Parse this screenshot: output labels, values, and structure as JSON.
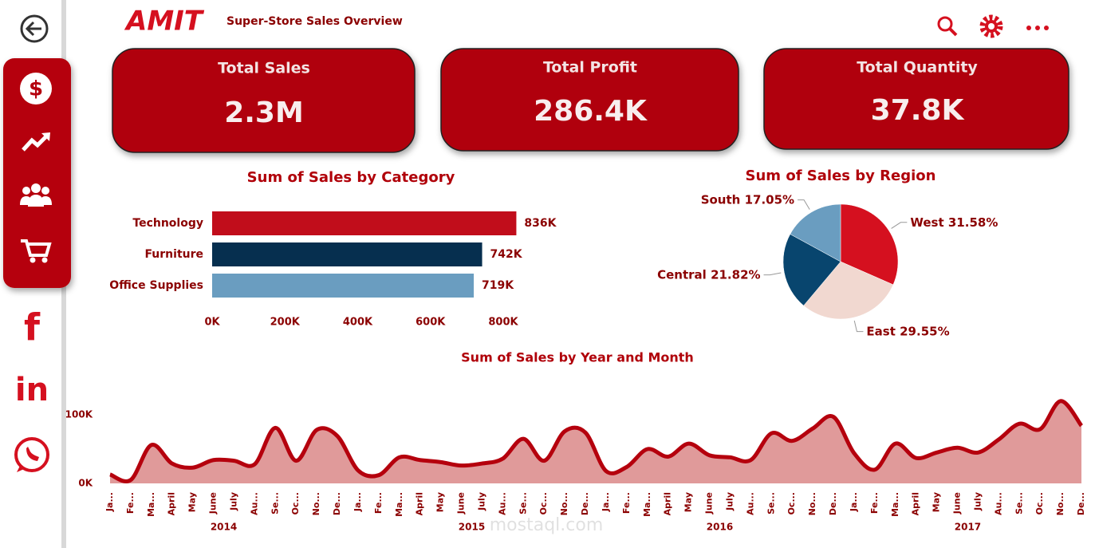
{
  "header": {
    "logo": "AMIT",
    "title": "Super-Store Sales Overview"
  },
  "kpis": [
    {
      "label": "Total Sales",
      "value": "2.3M"
    },
    {
      "label": "Total Profit",
      "value": "286.4K"
    },
    {
      "label": "Total Quantity",
      "value": "37.8K"
    }
  ],
  "watermark": "mostaql.com",
  "chart_data": [
    {
      "type": "bar",
      "orientation": "horizontal",
      "title": "Sum of Sales by Category",
      "categories": [
        "Technology",
        "Furniture",
        "Office Supplies"
      ],
      "values": [
        836000,
        742000,
        719000
      ],
      "value_labels": [
        "836K",
        "742K",
        "719K"
      ],
      "colors": [
        "#c10d1b",
        "#062f4f",
        "#6a9dc0"
      ],
      "xlim": [
        0,
        850000
      ],
      "xticks": [
        {
          "value": 0,
          "label": "0K"
        },
        {
          "value": 200000,
          "label": "200K"
        },
        {
          "value": 400000,
          "label": "400K"
        },
        {
          "value": 600000,
          "label": "600K"
        },
        {
          "value": 800000,
          "label": "800K"
        }
      ]
    },
    {
      "type": "pie",
      "title": "Sum of Sales by Region",
      "categories": [
        "West",
        "East",
        "Central",
        "South"
      ],
      "values": [
        31.58,
        29.55,
        21.82,
        17.05
      ],
      "value_labels": [
        "31.58%",
        "29.55%",
        "21.82%",
        "17.05%"
      ],
      "colors": [
        "#d5101f",
        "#f1d8d0",
        "#08456e",
        "#6a9dc0"
      ]
    },
    {
      "type": "area",
      "title": "Sum of Sales by Year and Month",
      "categories": [
        "Ja...",
        "Fe...",
        "Ma...",
        "April",
        "May",
        "June",
        "July",
        "Au...",
        "Se...",
        "Oc...",
        "No...",
        "De...",
        "Ja...",
        "Fe...",
        "Ma...",
        "April",
        "May",
        "June",
        "July",
        "Au...",
        "Se...",
        "Oc...",
        "No...",
        "De...",
        "Ja...",
        "Fe...",
        "Ma...",
        "April",
        "May",
        "June",
        "July",
        "Au...",
        "Se...",
        "Oc...",
        "No...",
        "De...",
        "Ja...",
        "Fe...",
        "Ma...",
        "April",
        "May",
        "June",
        "July",
        "Au...",
        "Se...",
        "Oc...",
        "No...",
        "De..."
      ],
      "groups": [
        "2014",
        "2015",
        "2016",
        "2017"
      ],
      "values": [
        13000,
        5000,
        56000,
        29000,
        23000,
        34000,
        33000,
        28000,
        81000,
        33000,
        78000,
        69000,
        19000,
        12000,
        38000,
        34000,
        31000,
        26000,
        29000,
        36000,
        65000,
        33000,
        76000,
        74000,
        18000,
        24000,
        50000,
        39000,
        58000,
        41000,
        38000,
        34000,
        73000,
        62000,
        80000,
        97000,
        44000,
        20000,
        58000,
        37000,
        45000,
        52000,
        45000,
        64000,
        87000,
        79000,
        120000,
        84000
      ],
      "ylim": [
        0,
        125000
      ],
      "yticks": [
        {
          "value": 0,
          "label": "0K"
        },
        {
          "value": 100000,
          "label": "100K"
        }
      ],
      "color": "#b5000d",
      "fill_color": "#e09a9a"
    }
  ]
}
